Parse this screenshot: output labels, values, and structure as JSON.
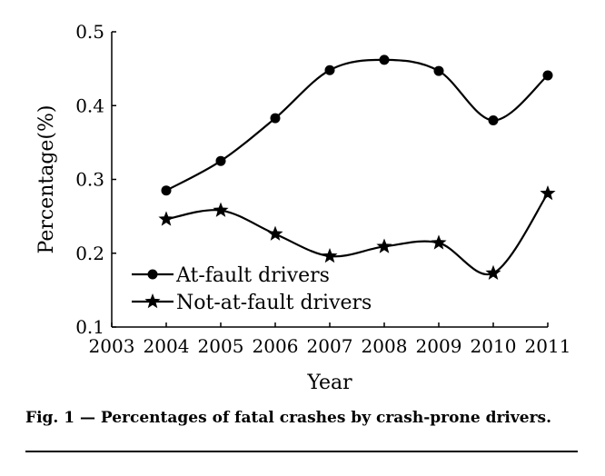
{
  "chart_data": {
    "type": "line",
    "x": [
      2004,
      2005,
      2006,
      2007,
      2008,
      2009,
      2010,
      2011
    ],
    "series": [
      {
        "name": "At-fault drivers",
        "marker": "circle",
        "values": [
          0.285,
          0.325,
          0.383,
          0.448,
          0.462,
          0.447,
          0.38,
          0.441
        ]
      },
      {
        "name": "Not-at-fault drivers",
        "marker": "star",
        "values": [
          0.246,
          0.258,
          0.226,
          0.196,
          0.209,
          0.214,
          0.173,
          0.281
        ]
      }
    ],
    "xlabel": "Year",
    "ylabel": "Percentage(%)",
    "xlim": [
      2003,
      2011
    ],
    "ylim": [
      0.1,
      0.5
    ],
    "xticks": [
      "2003",
      "2004",
      "2005",
      "2006",
      "2007",
      "2008",
      "2009",
      "2010",
      "2011"
    ],
    "yticks": [
      "0.1",
      "0.2",
      "0.3",
      "0.4",
      "0.5"
    ],
    "legend_position": "bottom-left",
    "line_color": "#000000"
  },
  "caption": "Fig. 1 — Percentages of fatal crashes by crash-prone drivers."
}
